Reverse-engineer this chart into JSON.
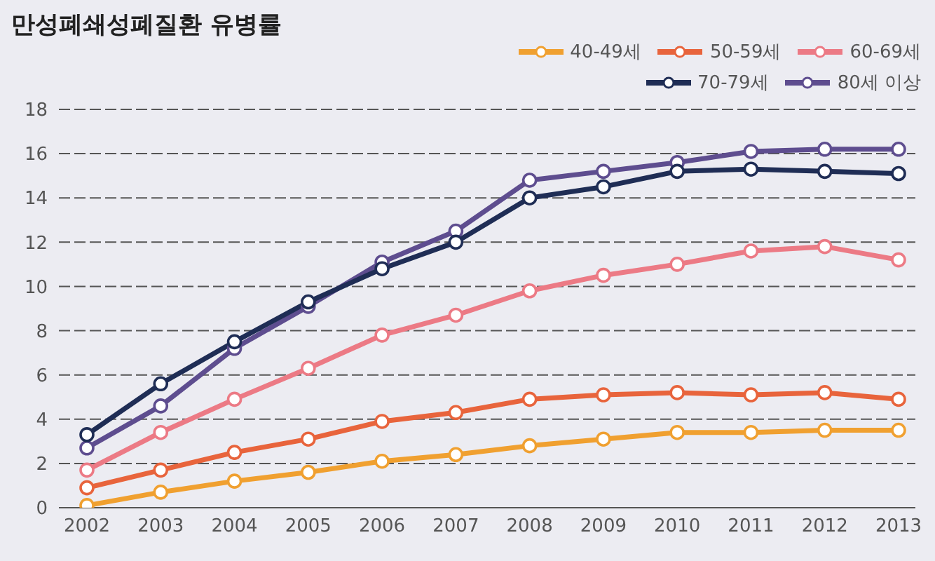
{
  "chart_data": {
    "type": "line",
    "title": "만성폐쇄성폐질환 유병률",
    "categories": [
      "2002",
      "2003",
      "2004",
      "2005",
      "2006",
      "2007",
      "2008",
      "2009",
      "2010",
      "2011",
      "2012",
      "2013"
    ],
    "series": [
      {
        "name": "40-49세",
        "color": "#f0a030",
        "values": [
          0.1,
          0.7,
          1.2,
          1.6,
          2.1,
          2.4,
          2.8,
          3.1,
          3.4,
          3.4,
          3.5,
          3.5
        ]
      },
      {
        "name": "50-59세",
        "color": "#e8643c",
        "values": [
          0.9,
          1.7,
          2.5,
          3.1,
          3.9,
          4.3,
          4.9,
          5.1,
          5.2,
          5.1,
          5.2,
          4.9
        ]
      },
      {
        "name": "60-69세",
        "color": "#ec7a85",
        "values": [
          1.7,
          3.4,
          4.9,
          6.3,
          7.8,
          8.7,
          9.8,
          10.5,
          11.0,
          11.6,
          11.8,
          11.2
        ]
      },
      {
        "name": "70-79세",
        "color": "#1f2d55",
        "values": [
          3.3,
          5.6,
          7.5,
          9.3,
          10.8,
          12.0,
          14.0,
          14.5,
          15.2,
          15.3,
          15.2,
          15.1
        ]
      },
      {
        "name": "80세 이상",
        "color": "#5e4d8f",
        "values": [
          2.7,
          4.6,
          7.2,
          9.1,
          11.1,
          12.5,
          14.8,
          15.2,
          15.6,
          16.1,
          16.2,
          16.2
        ]
      }
    ],
    "ylim": [
      0,
      18
    ],
    "yticks": [
      0,
      2,
      4,
      6,
      8,
      10,
      12,
      14,
      16,
      18
    ],
    "grid": "y",
    "legend": "top right",
    "marker": "circle",
    "line_style": "solid"
  }
}
